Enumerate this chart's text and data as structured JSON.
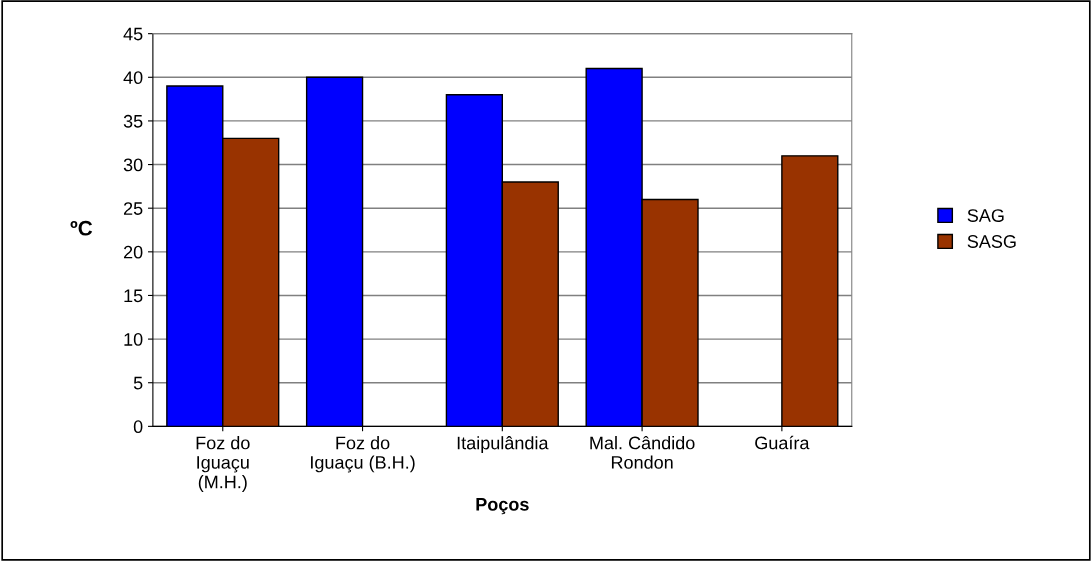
{
  "chart_data": {
    "type": "bar",
    "xlabel": "Poços",
    "ylabel": "ºC",
    "categories": [
      "Foz do\nIguaçu\n(M.H.)",
      "Foz do\nIguaçu (B.H.)",
      "Itaipulândia",
      "Mal. Cândido\nRondon",
      "Guaíra"
    ],
    "series": [
      {
        "name": "SAG",
        "color": "#0000ff",
        "values": [
          39,
          40,
          38,
          41,
          null
        ]
      },
      {
        "name": "SASG",
        "color": "#993300",
        "values": [
          33,
          null,
          28,
          26,
          31
        ]
      }
    ],
    "ylim": [
      0,
      45
    ],
    "yticks": [
      0,
      5,
      10,
      15,
      20,
      25,
      30,
      35,
      40,
      45
    ],
    "grid": "y",
    "legend": "right"
  }
}
